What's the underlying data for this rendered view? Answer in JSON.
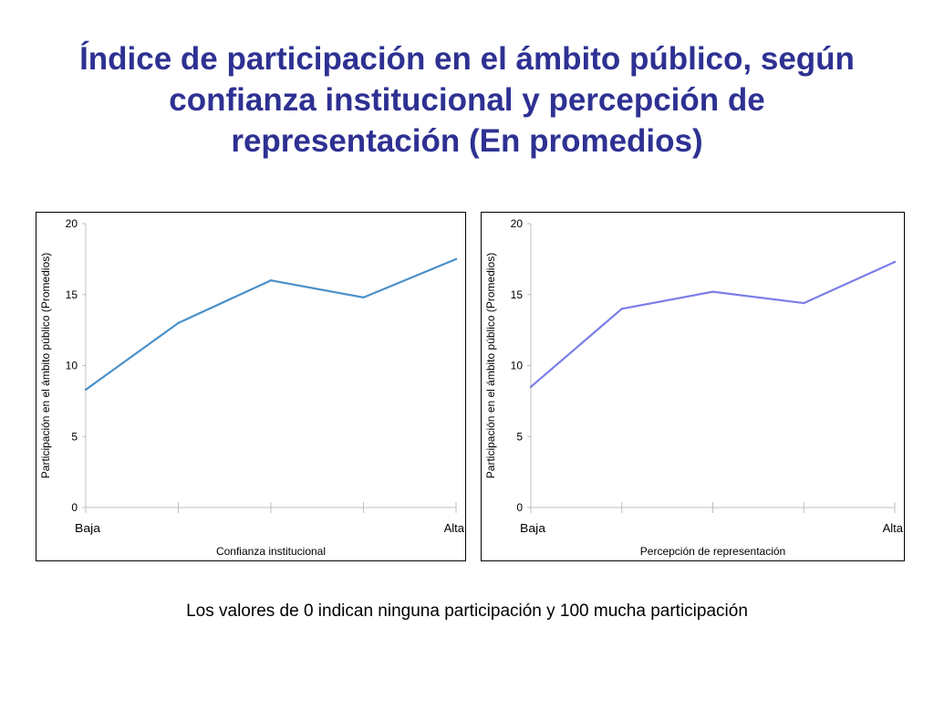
{
  "title_lines": [
    "Índice de participación en el ámbito público, según",
    "confianza institucional y percepción de",
    "representación (En promedios)"
  ],
  "footnote": "Los valores de 0 indican ninguna participación y 100 mucha participación",
  "colors": {
    "title": "#2e3192",
    "series_left": "#4a90c9",
    "series_right": "#7b7ee8"
  },
  "chart_data": [
    {
      "type": "line",
      "title": "",
      "xlabel": "Confianza institucional",
      "ylabel": "Participación en el ámbito público (Promedios)",
      "categories": [
        "Baja",
        "",
        "",
        "",
        "Alta"
      ],
      "x_ticks": [
        "Baja",
        "Alta"
      ],
      "y_ticks": [
        "0",
        "5",
        "10",
        "15",
        "20"
      ],
      "ylim": [
        0,
        20
      ],
      "series": [
        {
          "name": "Confianza institucional",
          "values": [
            8.3,
            13.0,
            16.0,
            14.8,
            17.5
          ]
        }
      ]
    },
    {
      "type": "line",
      "title": "",
      "xlabel": "Percepción de representación",
      "ylabel": "Participación en el ámbito público (Promedios)",
      "categories": [
        "Baja",
        "",
        "",
        "",
        "Alta"
      ],
      "x_ticks": [
        "Baja",
        "Alta"
      ],
      "y_ticks": [
        "0",
        "5",
        "10",
        "15",
        "20"
      ],
      "ylim": [
        0,
        20
      ],
      "series": [
        {
          "name": "Percepción de representación",
          "values": [
            8.5,
            14.0,
            15.2,
            14.4,
            17.3
          ]
        }
      ]
    }
  ]
}
